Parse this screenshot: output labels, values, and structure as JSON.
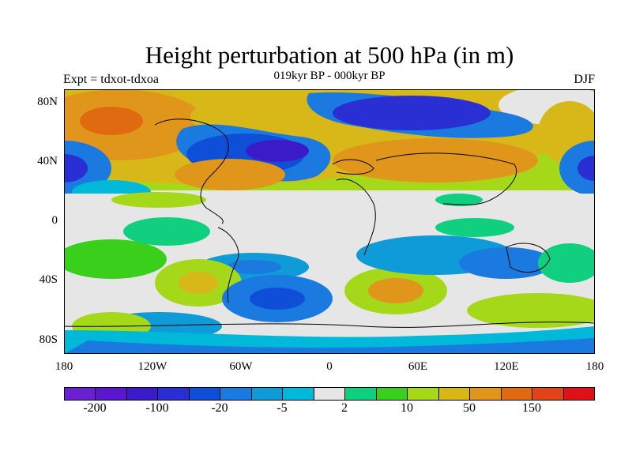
{
  "figure": {
    "title": "Height perturbation at 500 hPa (in m)",
    "subtitle": "019kyr BP - 000kyr BP",
    "experiment": "Expt = tdxot-tdxoa",
    "season": "DJF"
  },
  "map": {
    "lat_ticks": [
      "80N",
      "40N",
      "0",
      "40S",
      "80S"
    ],
    "lon_ticks": [
      "180",
      "120W",
      "60W",
      "0",
      "60E",
      "120E",
      "180"
    ]
  },
  "colorbar": {
    "colors": [
      "#6a1fd0",
      "#5a17cc",
      "#3b1ac8",
      "#2a2fd4",
      "#0f4fd8",
      "#1a7ae0",
      "#0f9ad8",
      "#00b8d8",
      "#e6e6e6",
      "#10d080",
      "#3acf1a",
      "#a6d81a",
      "#d8b818",
      "#e0961a",
      "#e06a10",
      "#e04418",
      "#e0101a"
    ],
    "labels": [
      "-200",
      "-100",
      "-20",
      "-5",
      "2",
      "10",
      "50",
      "150"
    ]
  }
}
